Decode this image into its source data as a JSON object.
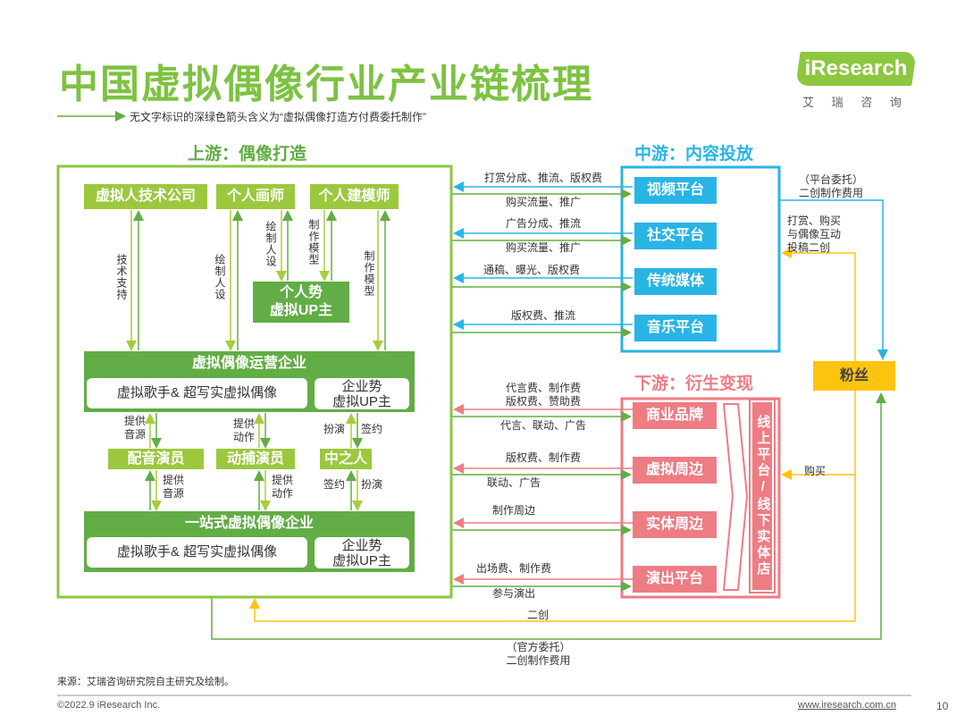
{
  "title": "中国虚拟偶像行业产业链梳理",
  "subtitle": "无文字标识的深绿色箭头含义为“虚拟偶像打造方付费委托制作”",
  "logo": {
    "brand": "iResearch",
    "cn": "艾 瑞 咨 询"
  },
  "colors": {
    "green": "#7dc242",
    "lime": "#9cc83e",
    "dark_green": "#62ad45",
    "blue": "#29b4e6",
    "pink": "#ee7c83",
    "yellow": "#fdc40f"
  },
  "upstream": {
    "heading": "上游：偶像打造",
    "top": [
      "虚拟人技术公司",
      "个人画师",
      "个人建模师"
    ],
    "personal_up": [
      "个人势",
      "虚拟UP主"
    ],
    "operator": {
      "title": "虚拟偶像运营企业",
      "left": "虚拟歌手& 超写实虚拟偶像",
      "right": [
        "企业势",
        "虚拟UP主"
      ]
    },
    "actors": [
      "配音演员",
      "动捕演员",
      "中之人"
    ],
    "onestop": {
      "title": "一站式虚拟偶像企业",
      "left": "虚拟歌手& 超写实虚拟偶像",
      "right": [
        "企业势",
        "虚拟UP主"
      ]
    },
    "labels": {
      "tech": "技术支持",
      "draw": "绘制人设",
      "draw2": "绘制人设",
      "model": "制作模型",
      "model2": "制作模型",
      "voice1": "提供音源",
      "voice2": "提供音源",
      "motion1": "提供动作",
      "motion2": "提供动作",
      "play1": "扮演",
      "sign1": "签约",
      "sign2": "签约",
      "play2": "扮演"
    }
  },
  "midstream": {
    "heading": "中游：内容投放",
    "platforms": [
      "视频平台",
      "社交平台",
      "传统媒体",
      "音乐平台"
    ],
    "flows": [
      {
        "in": "打赏分成、推流、版权费",
        "out": "购买流量、推广"
      },
      {
        "in": "广告分成、推流",
        "out": "购买流量、推广"
      },
      {
        "in": "通稿、曝光、版权费",
        "out": ""
      },
      {
        "in": "版权费、推流",
        "out": ""
      }
    ]
  },
  "downstream": {
    "heading": "下游：衍生变现",
    "items": [
      "商业品牌",
      "虚拟周边",
      "实体周边",
      "演出平台"
    ],
    "channel": "线上平台/线下实体店",
    "flows": [
      {
        "in": "代言费、制作费\n版权费、赞助费",
        "out": "代言、联动、广告"
      },
      {
        "in": "版权费、制作费",
        "out": "联动、广告"
      },
      {
        "in": "制作周边",
        "out": ""
      },
      {
        "in": "出场费、制作费",
        "out": "参与演出"
      }
    ]
  },
  "fans": {
    "label": "粉丝",
    "platform_commission": "（平台委托）\n二创制作费用",
    "interact": "打赏、购买\n与偶像互动\n投稿二创",
    "buy": "购买",
    "fan_art": "二创",
    "official_commission": "（官方委托）\n二创制作费用"
  },
  "footer": {
    "source": "来源：艾瑞咨询研究院自主研究及绘制。",
    "copyright": "©2022.9 iResearch Inc.",
    "url": "www.iresearch.com.cn",
    "page": "10"
  }
}
